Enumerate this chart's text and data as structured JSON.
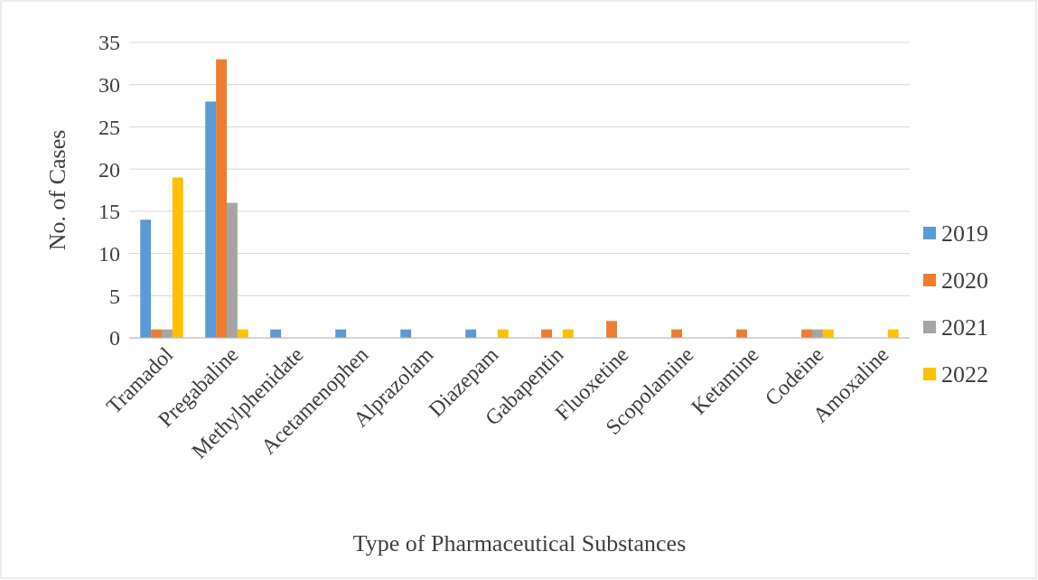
{
  "chart_data": {
    "type": "bar",
    "xlabel": "Type of Pharmaceutical Substances",
    "ylabel": "No. of Cases",
    "categories": [
      "Tramadol",
      "Pregabaline",
      "Methylphenidate",
      "Acetamenophen",
      "Alprazolam",
      "Diazepam",
      "Gabapentin",
      "Fluoxetine",
      "Scopolamine",
      "Ketamine",
      "Codeine",
      "Amoxaline"
    ],
    "series": [
      {
        "name": "2019",
        "color": "#5b9bd5",
        "values": [
          14,
          28,
          1,
          1,
          1,
          1,
          0,
          0,
          0,
          0,
          0,
          0
        ]
      },
      {
        "name": "2020",
        "color": "#ed7d31",
        "values": [
          1,
          33,
          0,
          0,
          0,
          0,
          1,
          2,
          1,
          1,
          1,
          0
        ]
      },
      {
        "name": "2021",
        "color": "#a5a5a5",
        "values": [
          1,
          16,
          0,
          0,
          0,
          0,
          0,
          0,
          0,
          0,
          1,
          0
        ]
      },
      {
        "name": "2022",
        "color": "#ffc000",
        "values": [
          19,
          1,
          0,
          0,
          0,
          1,
          1,
          0,
          0,
          0,
          1,
          1
        ]
      }
    ],
    "ylim": [
      0,
      35
    ],
    "yticks": [
      0,
      5,
      10,
      15,
      20,
      25,
      30,
      35
    ],
    "grid": "y",
    "legend": "right"
  }
}
